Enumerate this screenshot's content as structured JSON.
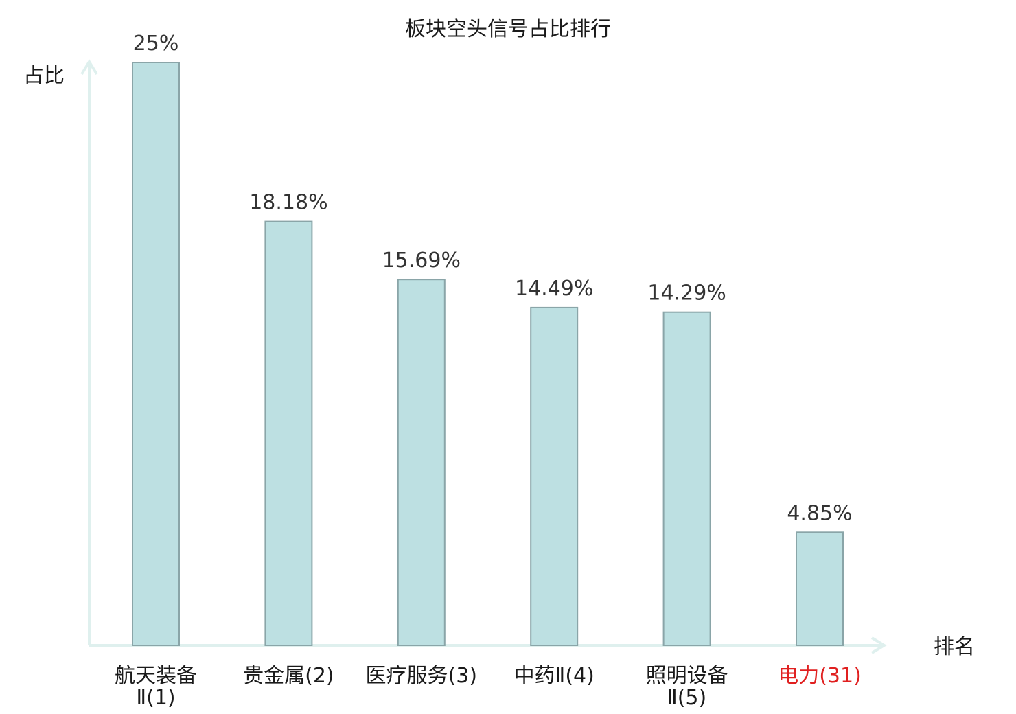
{
  "chart_data": {
    "type": "bar",
    "title": "板块空头信号占比排行",
    "ylabel": "占比",
    "xlabel": "排名",
    "ylim": [
      0,
      25
    ],
    "grid": false,
    "categories": [
      {
        "lines": [
          "航天装备",
          "Ⅱ(1)"
        ],
        "highlight": false
      },
      {
        "lines": [
          "贵金属(2)"
        ],
        "highlight": false
      },
      {
        "lines": [
          "医疗服务(3)"
        ],
        "highlight": false
      },
      {
        "lines": [
          "中药Ⅱ(4)"
        ],
        "highlight": false
      },
      {
        "lines": [
          "照明设备",
          "Ⅱ(5)"
        ],
        "highlight": false
      },
      {
        "lines": [
          "电力(31)"
        ],
        "highlight": true
      }
    ],
    "values": [
      25,
      18.18,
      15.69,
      14.49,
      14.29,
      4.85
    ],
    "value_labels": [
      "25%",
      "18.18%",
      "15.69%",
      "14.49%",
      "14.29%",
      "4.85%"
    ],
    "colors": {
      "bar_fill": "#bde0e2",
      "bar_stroke": "#8aa5a8",
      "axis": "#dff0ee",
      "label_text": "#1a1a1a",
      "highlight_text": "#e02020"
    }
  }
}
